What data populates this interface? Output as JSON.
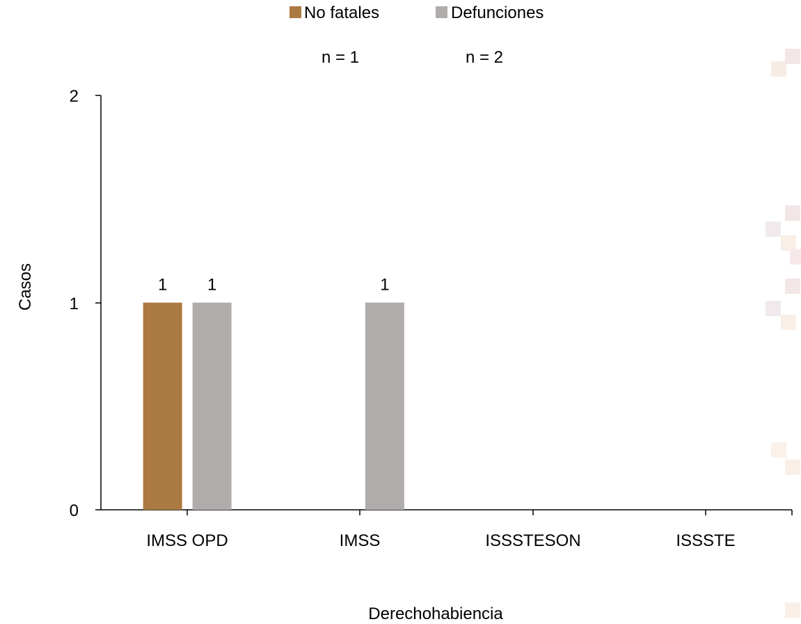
{
  "chart_data": {
    "type": "bar",
    "categories": [
      "IMSS OPD",
      "IMSS",
      "ISSSTESON",
      "ISSSTE"
    ],
    "series": [
      {
        "name": "No fatales",
        "color": "#ab7942",
        "values": [
          1,
          0,
          0,
          0
        ]
      },
      {
        "name": "Defunciones",
        "color": "#afacab",
        "values": [
          1,
          1,
          0,
          0
        ]
      }
    ],
    "series_totals": [
      "n = 1",
      "n = 2"
    ],
    "xlabel": "Derechohabiencia",
    "ylabel": "Casos",
    "ylim": [
      0,
      2
    ],
    "yticks": [
      "0",
      "1",
      "2"
    ],
    "legend_position": "top-center",
    "grid": false
  }
}
